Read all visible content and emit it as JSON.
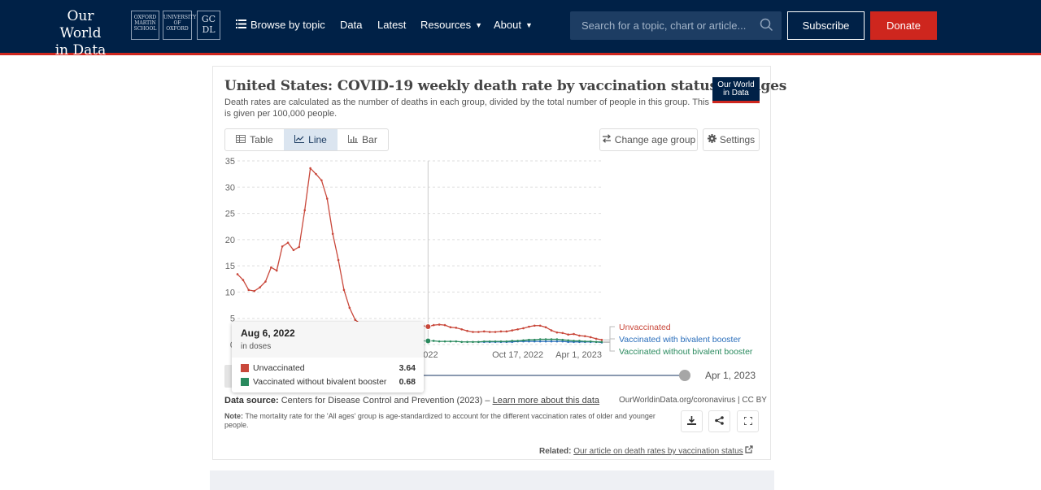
{
  "header": {
    "logo_line1": "Our World",
    "logo_line2": "in Data",
    "partners": {
      "p1": "OXFORD MARTIN SCHOOL",
      "p2": "UNIVERSITY OF OXFORD",
      "p3": "GC DL"
    },
    "nav": {
      "browse": "Browse by topic",
      "data": "Data",
      "latest": "Latest",
      "resources": "Resources",
      "about": "About"
    },
    "search_placeholder": "Search for a topic, chart or article...",
    "subscribe": "Subscribe",
    "donate": "Donate",
    "colors": {
      "navy": "#002147",
      "accent": "#ce261e"
    }
  },
  "chart": {
    "title": "United States: COVID-19 weekly death rate by vaccination status, All ages",
    "subtitle": "Death rates are calculated as the number of deaths in each group, divided by the total number of people in this group. This is given per 100,000 people.",
    "badge_line1": "Our World",
    "badge_line2": "in Data",
    "tabs": {
      "table": "Table",
      "line": "Line",
      "bar": "Bar"
    },
    "change_age": "Change age group",
    "settings": "Settings",
    "timeline_end": "Apr 1, 2023",
    "tooltip": {
      "date": "Aug 6, 2022",
      "unit": "in doses",
      "rows": [
        {
          "label": "Unvaccinated",
          "value": "3.64",
          "color": "#c9483b"
        },
        {
          "label": "Vaccinated without bivalent booster",
          "value": "0.68",
          "color": "#2a8a5e"
        }
      ]
    },
    "source_label": "Data source:",
    "source_text": "Centers for Disease Control and Prevention (2023) –",
    "source_link": "Learn more about this data",
    "license": "OurWorldinData.org/coronavirus | CC BY",
    "note_label": "Note:",
    "note_text": "The mortality rate for the 'All ages' group is age-standardized to account for the different vaccination rates of older and younger people.",
    "related_label": "Related:",
    "related_link": "Our article on death rates by vaccination status"
  },
  "chart_data": {
    "type": "line",
    "title": "United States: COVID-19 weekly death rate by vaccination status, All ages",
    "xlabel": "",
    "ylabel": "",
    "ylim": [
      0,
      35
    ],
    "yticks": [
      0,
      5,
      10,
      15,
      20,
      25,
      30,
      35
    ],
    "xtick_labels": [
      "2022",
      "Oct 17, 2022",
      "Apr 1, 2023"
    ],
    "hover_date": "Aug 6, 2022",
    "grid": true,
    "legend_placement": "right, at line ends",
    "series": [
      {
        "name": "Unvaccinated",
        "color": "#c9483b",
        "values": [
          13.4,
          12.3,
          10.4,
          10.2,
          10.9,
          12.0,
          14.7,
          14.1,
          18.7,
          19.4,
          18.0,
          18.6,
          25.6,
          33.6,
          32.5,
          31.3,
          27.8,
          21.1,
          16.1,
          10.4,
          7.0,
          4.7,
          3.9,
          3.6,
          3.5,
          3.5,
          3.6,
          3.6,
          3.7,
          3.5,
          3.4,
          3.5,
          3.7,
          3.6,
          3.4,
          3.7,
          3.8,
          3.7,
          3.3,
          3.2,
          2.9,
          2.6,
          2.4,
          2.4,
          2.5,
          2.4,
          2.4,
          2.5,
          2.5,
          2.7,
          2.9,
          3.1,
          3.4,
          3.6,
          3.6,
          3.3,
          2.7,
          2.3,
          2.2,
          1.9,
          2.0,
          1.7,
          1.6,
          1.4,
          1.1,
          0.9
        ]
      },
      {
        "name": "Vaccinated with bivalent booster",
        "color": "#2a6ebb",
        "values": [
          0.5,
          0.5,
          0.5,
          0.5,
          0.5,
          0.5,
          0.5,
          0.6,
          0.6,
          0.6,
          0.6,
          0.6,
          0.6,
          0.6,
          0.6,
          0.6,
          0.5,
          0.5,
          0.5,
          0.5,
          0.5,
          0.5,
          0.4
        ]
      },
      {
        "name": "Vaccinated without bivalent booster",
        "color": "#2a8a5e",
        "values": [
          0.7,
          0.7,
          0.7,
          0.7,
          0.7,
          0.7,
          0.7,
          0.6,
          0.6,
          0.6,
          0.6,
          0.5,
          0.5,
          0.5,
          0.5,
          0.6,
          0.6,
          0.6,
          0.6,
          0.6,
          0.7,
          0.7,
          0.8,
          0.9,
          0.9,
          1.0,
          1.0,
          1.0,
          1.0,
          0.9,
          0.8,
          0.7,
          0.7,
          0.6,
          0.6,
          0.5,
          0.5
        ]
      }
    ]
  }
}
